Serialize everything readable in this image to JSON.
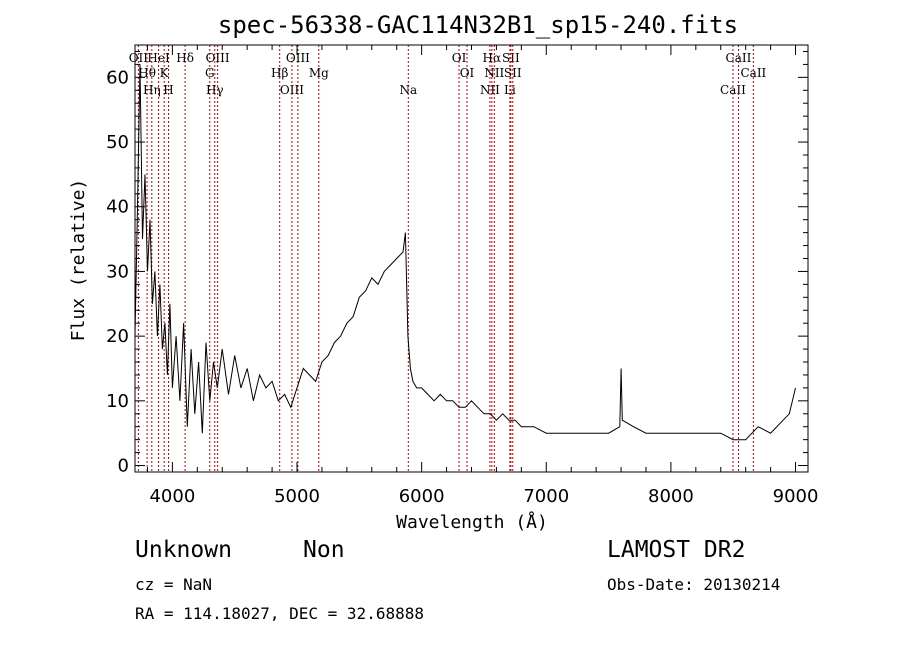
{
  "header": {
    "title": "spec-56338-GAC114N32B1_sp15-240.fits"
  },
  "footer": {
    "class_label": "Unknown",
    "subclass_label": "Non",
    "survey_label": "LAMOST DR2",
    "redshift_label": "cz = NaN",
    "obs_date_label": "Obs-Date: 20130214",
    "coords_label": "RA = 114.18027, DEC =  32.68888"
  },
  "colors": {
    "spectrum": "#000000",
    "line_marker": "#c00000",
    "axis": "#000000"
  },
  "chart_data": {
    "type": "line",
    "xlabel": "Wavelength (Å)",
    "ylabel": "Flux (relative)",
    "xlim": [
      3700,
      9100
    ],
    "ylim": [
      -1,
      65
    ],
    "xticks": [
      4000,
      5000,
      6000,
      7000,
      8000,
      9000
    ],
    "yticks": [
      0,
      10,
      20,
      30,
      40,
      50,
      60
    ],
    "grid": false,
    "series": [
      {
        "x": [
          3700,
          3720,
          3740,
          3760,
          3780,
          3800,
          3820,
          3840,
          3860,
          3880,
          3900,
          3920,
          3940,
          3960,
          3980,
          4000,
          4030,
          4060,
          4090,
          4120,
          4150,
          4180,
          4210,
          4240,
          4270,
          4300,
          4330,
          4360,
          4400,
          4450,
          4500,
          4550,
          4600,
          4650,
          4700,
          4750,
          4800,
          4850,
          4900,
          4950,
          5000,
          5050,
          5100,
          5150,
          5200,
          5250,
          5300,
          5350,
          5400,
          5450,
          5500,
          5550,
          5600,
          5650,
          5700,
          5750,
          5800,
          5850,
          5870,
          5890,
          5910,
          5930,
          5960,
          6000,
          6050,
          6100,
          6150,
          6200,
          6250,
          6300,
          6350,
          6400,
          6450,
          6500,
          6550,
          6600,
          6650,
          6700,
          6750,
          6800,
          6900,
          7000,
          7100,
          7200,
          7300,
          7400,
          7500,
          7590,
          7600,
          7610,
          7700,
          7800,
          7900,
          8000,
          8100,
          8200,
          8300,
          8400,
          8500,
          8600,
          8700,
          8800,
          8900,
          8950,
          9000
        ],
        "y": [
          20,
          40,
          62,
          35,
          45,
          30,
          38,
          25,
          30,
          20,
          28,
          18,
          22,
          14,
          25,
          12,
          20,
          10,
          22,
          6,
          18,
          8,
          16,
          5,
          19,
          10,
          16,
          12,
          18,
          11,
          17,
          12,
          15,
          10,
          14,
          12,
          13,
          10,
          11,
          9,
          12,
          15,
          14,
          13,
          16,
          17,
          19,
          20,
          22,
          23,
          26,
          27,
          29,
          28,
          30,
          31,
          32,
          33,
          36,
          20,
          15,
          13,
          12,
          12,
          11,
          10,
          11,
          10,
          10,
          9,
          9,
          10,
          9,
          8,
          8,
          7,
          8,
          7,
          7,
          6,
          6,
          5,
          5,
          5,
          5,
          5,
          5,
          6,
          15,
          7,
          6,
          5,
          5,
          5,
          5,
          5,
          5,
          5,
          4,
          4,
          6,
          5,
          7,
          8,
          12
        ]
      }
    ],
    "line_markers": [
      {
        "wl": 3727,
        "label": "OII"
      },
      {
        "wl": 3797,
        "label": "Hθ"
      },
      {
        "wl": 3835,
        "label": "Hη"
      },
      {
        "wl": 3889,
        "label": "HeI"
      },
      {
        "wl": 3934,
        "label": "K"
      },
      {
        "wl": 3969,
        "label": "H"
      },
      {
        "wl": 4102,
        "label": "Hδ"
      },
      {
        "wl": 4300,
        "label": "G"
      },
      {
        "wl": 4340,
        "label": "Hγ"
      },
      {
        "wl": 4363,
        "label": "OIII"
      },
      {
        "wl": 4861,
        "label": "Hβ"
      },
      {
        "wl": 4959,
        "label": "OIII"
      },
      {
        "wl": 5007,
        "label": "OIII"
      },
      {
        "wl": 5175,
        "label": "Mg"
      },
      {
        "wl": 5893,
        "label": "Na"
      },
      {
        "wl": 6300,
        "label": "OI"
      },
      {
        "wl": 6364,
        "label": "OI"
      },
      {
        "wl": 6548,
        "label": "NII"
      },
      {
        "wl": 6563,
        "label": "Hα"
      },
      {
        "wl": 6583,
        "label": "NII"
      },
      {
        "wl": 6708,
        "label": "Li"
      },
      {
        "wl": 6716,
        "label": "SII"
      },
      {
        "wl": 6731,
        "label": "SII"
      },
      {
        "wl": 8498,
        "label": "CaII"
      },
      {
        "wl": 8542,
        "label": "CaII"
      },
      {
        "wl": 8662,
        "label": "CaII"
      }
    ]
  }
}
